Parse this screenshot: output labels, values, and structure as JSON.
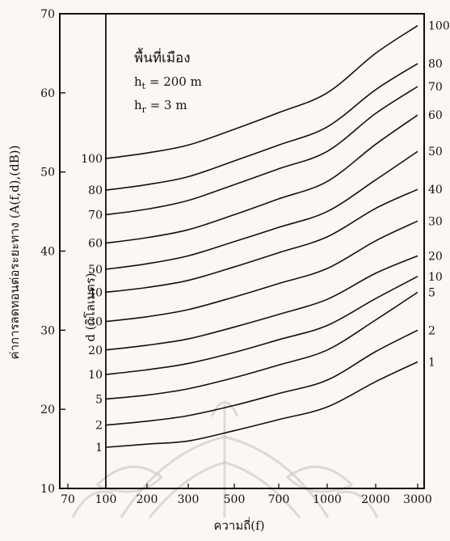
{
  "chart_data": {
    "type": "line",
    "title": "",
    "xlabel": "ความถี่(f)",
    "ylabel": "ค่าการลดทอนต่อระยะทาง (A(f,d),(dB))",
    "ylim": [
      10,
      70
    ],
    "y_ticks": [
      10,
      20,
      30,
      40,
      50,
      60,
      70
    ],
    "x_tick_labels": [
      "70",
      "100",
      "200",
      "300",
      "500",
      "700",
      "1000",
      "2000",
      "3000"
    ],
    "x_scale": "log",
    "annotations": {
      "area": "พื้นที่เมือง",
      "ht_label": "h",
      "ht_sub": "t",
      "ht_value": " = 200 m",
      "hr_label": "h",
      "hr_sub": "r",
      "hr_value": " = 3 m",
      "d_axis_label": "d (กิโลเมตร)"
    },
    "series_label_left": "distance",
    "series": [
      {
        "name": "1",
        "label_left": "1",
        "label_right": "1",
        "x": [
          100,
          200,
          300,
          500,
          700,
          1000,
          2000,
          3000
        ],
        "values": [
          15.2,
          15.6,
          16.0,
          17.3,
          18.7,
          20.3,
          23.5,
          26.0
        ]
      },
      {
        "name": "2",
        "label_left": "2",
        "label_right": "2",
        "x": [
          100,
          200,
          300,
          500,
          700,
          1000,
          2000,
          3000
        ],
        "values": [
          18.0,
          18.5,
          19.2,
          20.5,
          22.0,
          23.7,
          27.3,
          30.0
        ]
      },
      {
        "name": "5",
        "label_left": "5",
        "label_right": "5",
        "x": [
          100,
          200,
          300,
          500,
          700,
          1000,
          2000,
          3000
        ],
        "values": [
          21.3,
          21.8,
          22.6,
          24.0,
          25.6,
          27.5,
          31.3,
          34.8
        ]
      },
      {
        "name": "10",
        "label_left": "10",
        "label_right": "10",
        "x": [
          100,
          200,
          300,
          500,
          700,
          1000,
          2000,
          3000
        ],
        "values": [
          24.4,
          25.0,
          25.8,
          27.2,
          28.8,
          30.6,
          34.0,
          36.8
        ]
      },
      {
        "name": "20",
        "label_left": "20",
        "label_right": "20",
        "x": [
          100,
          200,
          300,
          500,
          700,
          1000,
          2000,
          3000
        ],
        "values": [
          27.5,
          28.1,
          28.9,
          30.4,
          32.0,
          33.9,
          37.2,
          39.4
        ]
      },
      {
        "name": "30",
        "label_left": "30",
        "label_right": "30",
        "x": [
          100,
          200,
          300,
          500,
          700,
          1000,
          2000,
          3000
        ],
        "values": [
          31.1,
          31.7,
          32.6,
          34.2,
          35.9,
          37.8,
          41.3,
          43.8
        ]
      },
      {
        "name": "40",
        "label_left": "40",
        "label_right": "40",
        "x": [
          100,
          200,
          300,
          500,
          700,
          1000,
          2000,
          3000
        ],
        "values": [
          34.8,
          35.4,
          36.3,
          38.0,
          39.8,
          41.8,
          45.4,
          47.8
        ]
      },
      {
        "name": "50",
        "label_left": "50",
        "label_right": "50",
        "x": [
          100,
          200,
          300,
          500,
          700,
          1000,
          2000,
          3000
        ],
        "values": [
          37.7,
          38.4,
          39.4,
          41.2,
          43.0,
          45.0,
          49.0,
          52.6
        ]
      },
      {
        "name": "60",
        "label_left": "60",
        "label_right": "60",
        "x": [
          100,
          200,
          300,
          500,
          700,
          1000,
          2000,
          3000
        ],
        "values": [
          41.0,
          41.7,
          42.7,
          44.6,
          46.6,
          48.8,
          53.5,
          57.2
        ]
      },
      {
        "name": "70",
        "label_left": "70",
        "label_right": "70",
        "x": [
          100,
          200,
          300,
          500,
          700,
          1000,
          2000,
          3000
        ],
        "values": [
          44.6,
          45.3,
          46.4,
          48.4,
          50.4,
          52.6,
          57.4,
          60.8
        ]
      },
      {
        "name": "80",
        "label_left": "80",
        "label_right": "80",
        "x": [
          100,
          200,
          300,
          500,
          700,
          1000,
          2000,
          3000
        ],
        "values": [
          47.7,
          48.4,
          49.4,
          51.4,
          53.4,
          55.7,
          60.4,
          63.7
        ]
      },
      {
        "name": "100",
        "label_left": "100",
        "label_right": "100",
        "x": [
          100,
          200,
          300,
          500,
          700,
          1000,
          2000,
          3000
        ],
        "values": [
          51.7,
          52.4,
          53.4,
          55.4,
          57.5,
          60.0,
          65.0,
          68.5
        ]
      }
    ],
    "grid": false,
    "line_color": "#111111"
  },
  "colors": {
    "background": "#fbf7f3",
    "ink": "#111111",
    "watermark": "#c9c0c0"
  }
}
